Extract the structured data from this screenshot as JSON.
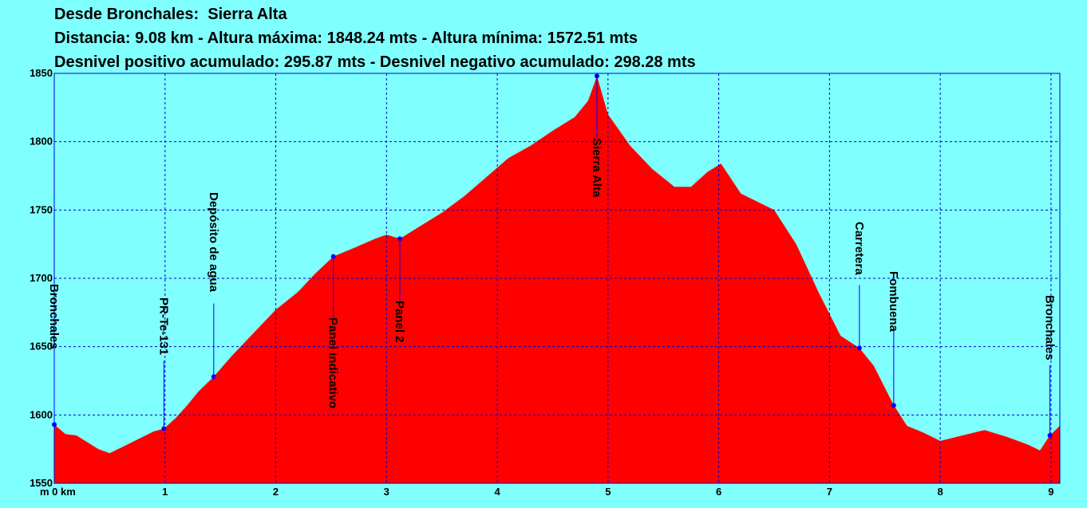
{
  "header": {
    "line1": "Desde Bronchales:  Sierra Alta",
    "line2": "Distancia: 9.08 km - Altura máxima: 1848.24 mts - Altura mínima: 1572.51 mts",
    "line3": "Desnivel positivo acumulado: 295.87 mts - Desnivel negativo acumulado: 298.28 mts"
  },
  "colors": {
    "background": "#80ffff",
    "fill": "#ff0000",
    "grid": "#0000cc",
    "marker": "#0000ff",
    "text": "#000000"
  },
  "chart_data": {
    "type": "area",
    "xlim": [
      0,
      9.08
    ],
    "ylim": [
      1550,
      1850
    ],
    "x_unit_label": "m 0 km",
    "x_tick_labels": [
      "1",
      "2",
      "3",
      "4",
      "5",
      "6",
      "7",
      "8",
      "9"
    ],
    "y_tick_labels": [
      "1550",
      "1600",
      "1650",
      "1700",
      "1750",
      "1800",
      "1850"
    ],
    "grid": true,
    "profile": {
      "x": [
        0,
        0.1,
        0.2,
        0.3,
        0.4,
        0.5,
        0.6,
        0.7,
        0.8,
        0.9,
        0.99,
        1.1,
        1.2,
        1.3,
        1.44,
        1.6,
        1.8,
        2.0,
        2.2,
        2.35,
        2.52,
        2.7,
        2.9,
        3.0,
        3.12,
        3.3,
        3.5,
        3.7,
        3.9,
        4.1,
        4.3,
        4.5,
        4.7,
        4.82,
        4.9,
        5.0,
        5.2,
        5.4,
        5.6,
        5.75,
        5.9,
        6.02,
        6.2,
        6.5,
        6.7,
        6.9,
        7.1,
        7.27,
        7.4,
        7.5,
        7.58,
        7.7,
        7.85,
        8.0,
        8.2,
        8.4,
        8.6,
        8.8,
        8.9,
        8.99,
        9.08
      ],
      "y": [
        1593,
        1586,
        1585,
        1580,
        1575,
        1572,
        1576,
        1580,
        1584,
        1588,
        1590,
        1598,
        1607,
        1617,
        1628,
        1643,
        1660,
        1677,
        1690,
        1703,
        1716,
        1722,
        1729,
        1732,
        1729,
        1738,
        1748,
        1760,
        1774,
        1788,
        1797,
        1808,
        1818,
        1830,
        1848,
        1820,
        1797,
        1780,
        1767,
        1767,
        1778,
        1784,
        1762,
        1750,
        1725,
        1690,
        1658,
        1649,
        1636,
        1620,
        1607,
        1592,
        1587,
        1581,
        1585,
        1589,
        1584,
        1578,
        1574,
        1585,
        1592
      ]
    },
    "waypoints": [
      {
        "name": "Bronchales",
        "x": 0.0,
        "y": 1593
      },
      {
        "name": "PR-Te-131",
        "x": 0.99,
        "y": 1590
      },
      {
        "name": "Depósito de agua",
        "x": 1.44,
        "y": 1628
      },
      {
        "name": "Panel indicativo",
        "x": 2.52,
        "y": 1716
      },
      {
        "name": "Panel  2",
        "x": 3.12,
        "y": 1729
      },
      {
        "name": "Sierra Alta",
        "x": 4.9,
        "y": 1848
      },
      {
        "name": "Carretera",
        "x": 7.27,
        "y": 1649
      },
      {
        "name": "Fombuena",
        "x": 7.58,
        "y": 1607
      },
      {
        "name": "Bronchales",
        "x": 8.99,
        "y": 1585
      }
    ]
  }
}
